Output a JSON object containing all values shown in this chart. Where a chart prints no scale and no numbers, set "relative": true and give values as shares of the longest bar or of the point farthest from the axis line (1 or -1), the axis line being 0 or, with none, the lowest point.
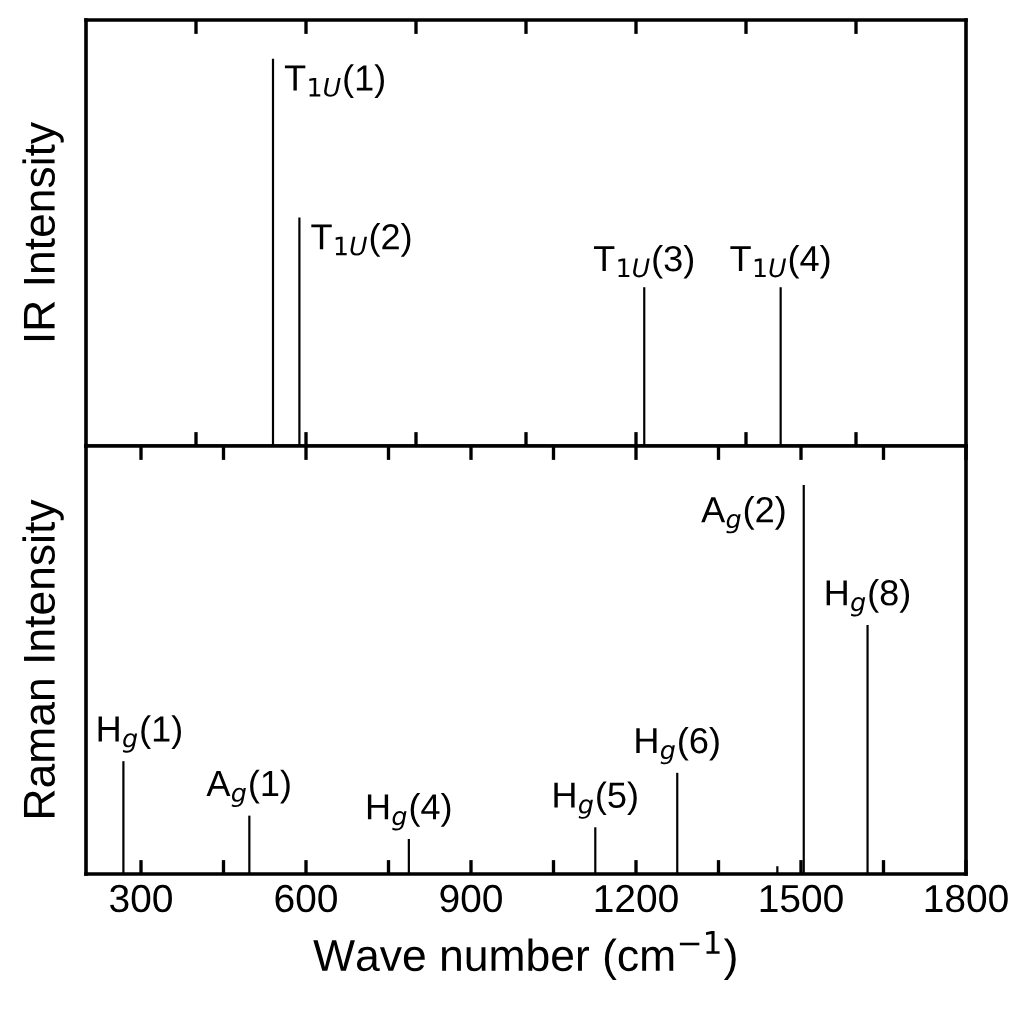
{
  "chart_data": [
    {
      "type": "bar",
      "ylabel": "IR Intensity",
      "relative": true,
      "tick_labels": false,
      "x": [
        540,
        588,
        1215,
        1463
      ],
      "series": [
        {
          "color": "#000000",
          "values": [
            1,
            0.59,
            0.41,
            0.41
          ]
        }
      ],
      "xlim": [
        200,
        1800
      ],
      "xticks": [
        {
          "value": 400,
          "label": null
        },
        {
          "value": 600,
          "label": null
        },
        {
          "value": 800,
          "label": null
        },
        {
          "value": 1000,
          "label": null
        },
        {
          "value": 1200,
          "label": null
        },
        {
          "value": 1400,
          "label": null
        },
        {
          "value": 1600,
          "label": null
        }
      ],
      "annotations": [
        {
          "text": "T$_{1U}$(1)",
          "x": 540,
          "y": 1
        },
        {
          "text": "T$_{1U}$(2)",
          "x": 588,
          "y": 0.59
        },
        {
          "text": "T$_{1U}$(3)",
          "x": 1215,
          "y": 0.41
        },
        {
          "text": "T$_{1U}$(4)",
          "x": 1463,
          "y": 0.41
        }
      ],
      "grid": false,
      "legend": false
    },
    {
      "type": "bar",
      "ylabel": "Raman Intensity",
      "xlabel": "Wave number (cm$^{−1}$)",
      "relative": true,
      "tick_labels": "x",
      "x": [
        268,
        497,
        787,
        1126,
        1275,
        1457,
        1505,
        1621
      ],
      "series": [
        {
          "color": "#000000",
          "values": [
            0.29,
            0.15,
            0.09,
            0.12,
            0.26,
            0.02,
            1,
            0.64
          ]
        }
      ],
      "xlim": [
        200,
        1800
      ],
      "xticks": [
        300,
        {
          "value": 450,
          "label": null
        },
        600,
        {
          "value": 750,
          "label": null
        },
        900,
        {
          "value": 1050,
          "label": null
        },
        1200,
        {
          "value": 1350,
          "label": null
        },
        1500,
        {
          "value": 1650,
          "label": null
        },
        1800
      ],
      "annotations": [
        {
          "text": "H$_{g}$(1)",
          "x": 268,
          "y": 0.29
        },
        {
          "text": "A$_{g}$(1)",
          "x": 497,
          "y": 0.15
        },
        {
          "text": "H$_{g}$(4)",
          "x": 787,
          "y": 0.09
        },
        {
          "text": "H$_{g}$(5)",
          "x": 1126,
          "y": 0.12
        },
        {
          "text": "H$_{g}$(6)",
          "x": 1275,
          "y": 0.26
        },
        {
          "text": "A$_{g}$(2)",
          "x": 1505,
          "y": 1
        },
        {
          "text": "H$_{g}$(8)",
          "x": 1621,
          "y": 0.64
        }
      ],
      "grid": false,
      "legend": false
    }
  ]
}
